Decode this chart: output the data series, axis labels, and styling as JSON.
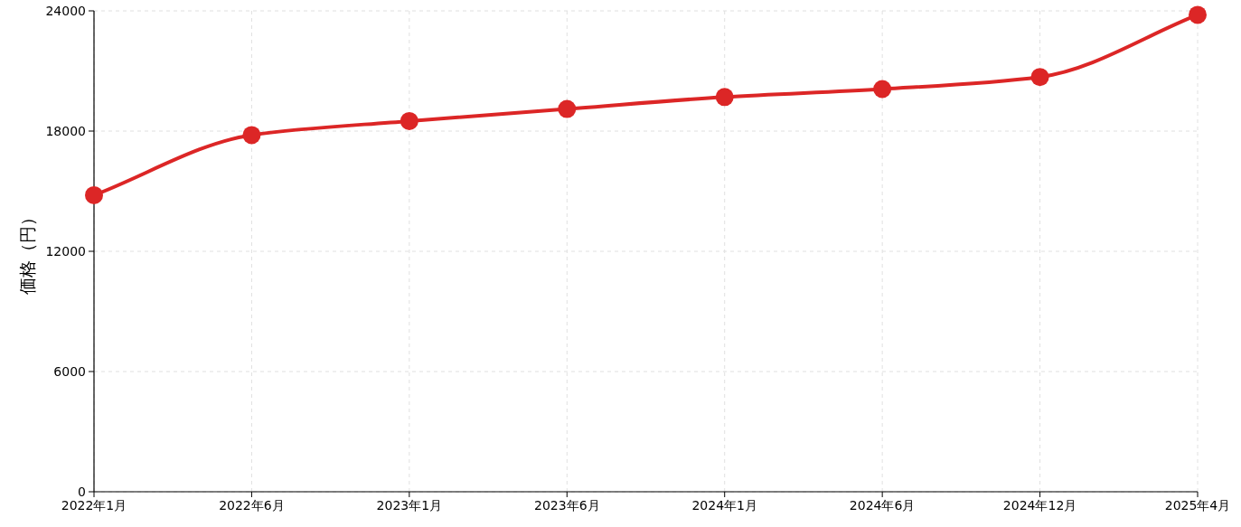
{
  "chart_data": {
    "type": "line",
    "ylabel": "価格（円）",
    "categories": [
      "2022年1月",
      "2022年6月",
      "2023年1月",
      "2023年6月",
      "2024年1月",
      "2024年6月",
      "2024年12月",
      "2025年4月"
    ],
    "series": [
      {
        "color": "#dc2626",
        "values": [
          14800,
          17800,
          18500,
          19100,
          19700,
          20100,
          20700,
          23800
        ]
      }
    ],
    "ylim": [
      0,
      24000
    ],
    "yticks": [
      0,
      6000,
      12000,
      18000,
      24000
    ],
    "grid": true,
    "marker": "circle",
    "line_style": "solid"
  }
}
